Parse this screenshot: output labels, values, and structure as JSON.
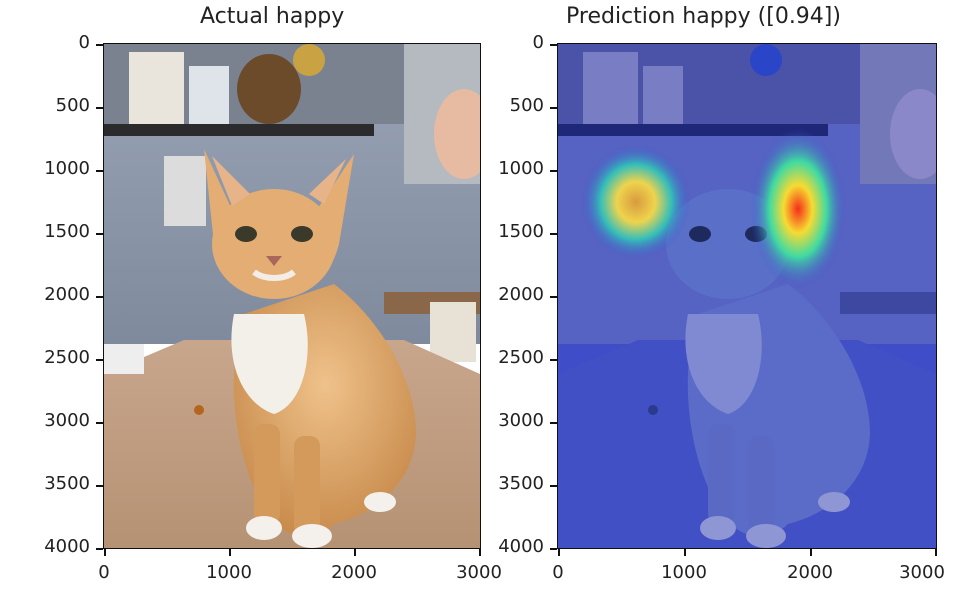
{
  "left_panel": {
    "title": "Actual happy",
    "image_description_icon": "orange-cat-photo"
  },
  "right_panel": {
    "title": "Prediction happy ([0.94])",
    "image_description_icon": "cat-heatmap-overlay"
  },
  "axes": {
    "x_ticks": [
      "0",
      "1000",
      "2000",
      "3000"
    ],
    "y_ticks": [
      "0",
      "500",
      "1000",
      "1500",
      "2000",
      "2500",
      "3000",
      "3500",
      "4000"
    ],
    "xlim": [
      0,
      3000
    ],
    "ylim": [
      4000,
      0
    ]
  },
  "colors": {
    "wall": "#8e99ad",
    "table": "#c9a78f",
    "cat": "#e0a86a",
    "heat_base": "#3d4fd1",
    "heat_hot": "#ff3b20"
  }
}
